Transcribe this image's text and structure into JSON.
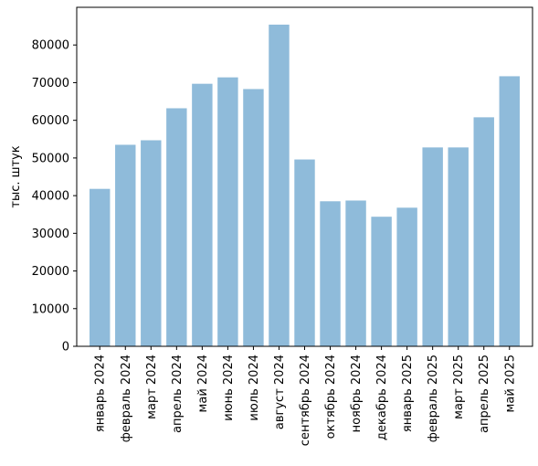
{
  "chart_data": {
    "type": "bar",
    "title": "",
    "xlabel": "",
    "ylabel": "тыс. штук",
    "ylim": [
      0,
      90000
    ],
    "yticks": [
      0,
      10000,
      20000,
      30000,
      40000,
      50000,
      60000,
      70000,
      80000
    ],
    "grid": false,
    "legend": "none",
    "bar_color": "#8fbbda",
    "axis_color": "#000000",
    "categories": [
      "январь 2024",
      "февраль 2024",
      "март 2024",
      "апрель 2024",
      "май 2024",
      "июнь 2024",
      "июль 2024",
      "август 2024",
      "сентябрь 2024",
      "октябрь 2024",
      "ноябрь 2024",
      "декабрь 2024",
      "январь 2025",
      "февраль 2025",
      "март 2025",
      "апрель 2025",
      "май 2025"
    ],
    "values": [
      41800,
      53500,
      54700,
      63200,
      69700,
      71400,
      68300,
      85400,
      49600,
      38500,
      38700,
      34400,
      36800,
      52800,
      52800,
      60800,
      71700
    ]
  }
}
